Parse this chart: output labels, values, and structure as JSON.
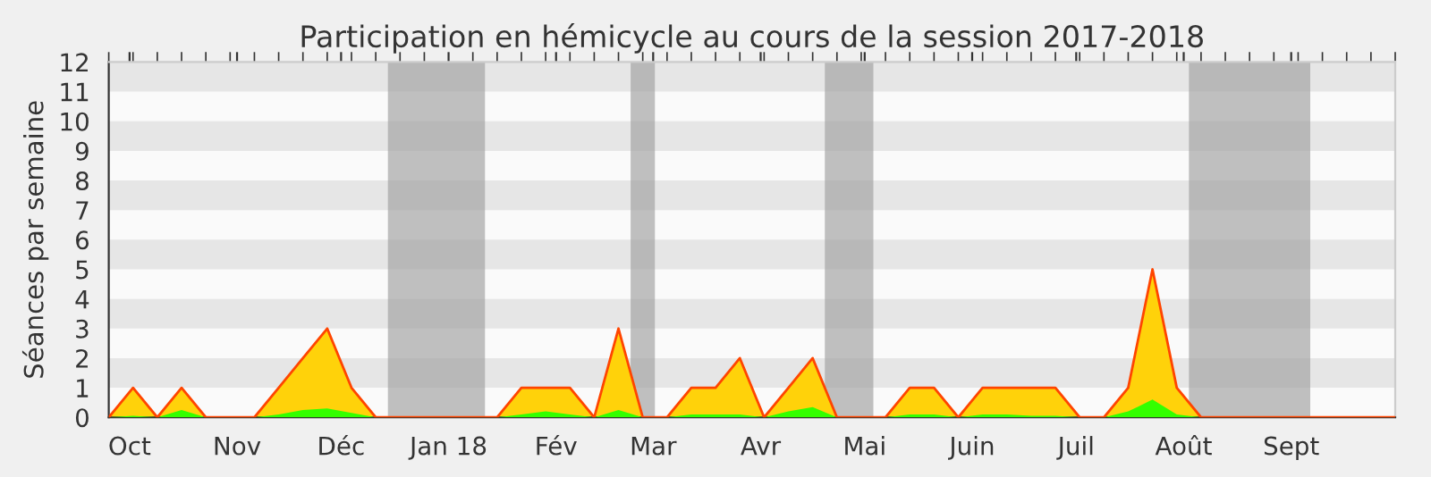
{
  "chart_data": {
    "type": "area",
    "title": "Participation en hémicycle au cours de la session 2017-2018",
    "ylabel": "Séances par semaine",
    "x": [
      "2017-09-25",
      "2017-10-02",
      "2017-10-09",
      "2017-10-16",
      "2017-10-23",
      "2017-10-30",
      "2017-11-06",
      "2017-11-13",
      "2017-11-20",
      "2017-11-27",
      "2017-12-04",
      "2017-12-11",
      "2017-12-18",
      "2017-12-25",
      "2018-01-01",
      "2018-01-08",
      "2018-01-15",
      "2018-01-22",
      "2018-01-29",
      "2018-02-05",
      "2018-02-12",
      "2018-02-19",
      "2018-02-26",
      "2018-03-05",
      "2018-03-12",
      "2018-03-19",
      "2018-03-26",
      "2018-04-02",
      "2018-04-09",
      "2018-04-16",
      "2018-04-23",
      "2018-04-30",
      "2018-05-07",
      "2018-05-14",
      "2018-05-21",
      "2018-05-28",
      "2018-06-04",
      "2018-06-11",
      "2018-06-18",
      "2018-06-25",
      "2018-07-02",
      "2018-07-09",
      "2018-07-16",
      "2018-07-23",
      "2018-07-30",
      "2018-08-06",
      "2018-08-13",
      "2018-08-20",
      "2018-08-27",
      "2018-09-03",
      "2018-09-10",
      "2018-09-17",
      "2018-09-24",
      "2018-10-01"
    ],
    "series": [
      {
        "color": "#ffd20a",
        "values": [
          0,
          1,
          0,
          1,
          0,
          0,
          0,
          1,
          2,
          3,
          1,
          0,
          0,
          0,
          0,
          0,
          0,
          1,
          1,
          1,
          0,
          3,
          0,
          0,
          1,
          1,
          2,
          0,
          1,
          2,
          0,
          0,
          0,
          1,
          1,
          0,
          1,
          1,
          1,
          1,
          0,
          0,
          1,
          5,
          1,
          0,
          0,
          0,
          0,
          0,
          0,
          0,
          0,
          0
        ]
      },
      {
        "color": "#33ff00",
        "values": [
          0,
          0.05,
          0,
          0.25,
          0,
          0,
          0,
          0.1,
          0.25,
          0.3,
          0.15,
          0,
          0,
          0,
          0,
          0,
          0,
          0.1,
          0.2,
          0.1,
          0,
          0.25,
          0,
          0,
          0.1,
          0.1,
          0.1,
          0,
          0.2,
          0.35,
          0,
          0,
          0,
          0.1,
          0.1,
          0,
          0.1,
          0.1,
          0.05,
          0.05,
          0,
          0,
          0.2,
          0.6,
          0.1,
          0,
          0,
          0,
          0,
          0,
          0,
          0,
          0,
          0
        ]
      }
    ],
    "bands": [
      {
        "axis": "y",
        "from": 1,
        "to": 2,
        "color": "#dcdcdc"
      },
      {
        "axis": "y",
        "from": 3,
        "to": 4,
        "color": "#dcdcdc"
      },
      {
        "axis": "y",
        "from": 5,
        "to": 6,
        "color": "#dcdcdc"
      },
      {
        "axis": "y",
        "from": 7,
        "to": 8,
        "color": "#dcdcdc"
      },
      {
        "axis": "y",
        "from": 9,
        "to": 10,
        "color": "#dcdcdc"
      },
      {
        "axis": "y",
        "from": 11,
        "to": 12,
        "color": "#dcdcdc"
      },
      {
        "axis": "x",
        "from": "2017-12-14T12:00",
        "to": "2018-01-11T12:00",
        "color": "#a0a0a0"
      },
      {
        "axis": "x",
        "from": "2018-02-22T12:00",
        "to": "2018-03-01T12:00",
        "color": "#a0a0a0"
      },
      {
        "axis": "x",
        "from": "2018-04-19T12:00",
        "to": "2018-05-03T12:00",
        "color": "#a0a0a0"
      },
      {
        "axis": "x",
        "from": "2018-08-02T12:00",
        "to": "2018-09-06T12:00",
        "color": "#a0a0a0"
      }
    ],
    "xlim": [
      "2017-09-25",
      "2018-10-01"
    ],
    "xticks": [
      {
        "value": "2017-10-01",
        "label": "Oct"
      },
      {
        "value": "2017-11-01",
        "label": "Nov"
      },
      {
        "value": "2017-12-01",
        "label": "Déc"
      },
      {
        "value": "2018-01-01",
        "label": "Jan 18"
      },
      {
        "value": "2018-02-01",
        "label": "Fév"
      },
      {
        "value": "2018-03-01",
        "label": "Mar"
      },
      {
        "value": "2018-04-01",
        "label": "Avr"
      },
      {
        "value": "2018-05-01",
        "label": "Mai"
      },
      {
        "value": "2018-06-01",
        "label": "Juin"
      },
      {
        "value": "2018-07-01",
        "label": "Juil"
      },
      {
        "value": "2018-08-01",
        "label": "Août"
      },
      {
        "value": "2018-09-01",
        "label": "Sept"
      },
      {
        "value": "2017-09-25",
        "label": null
      },
      {
        "value": "2017-10-02",
        "label": null
      },
      {
        "value": "2017-10-09",
        "label": null
      },
      {
        "value": "2017-10-16",
        "label": null
      },
      {
        "value": "2017-10-23",
        "label": null
      },
      {
        "value": "2017-10-30",
        "label": null
      },
      {
        "value": "2017-11-06",
        "label": null
      },
      {
        "value": "2017-11-13",
        "label": null
      },
      {
        "value": "2017-11-20",
        "label": null
      },
      {
        "value": "2017-11-27",
        "label": null
      },
      {
        "value": "2017-12-04",
        "label": null
      },
      {
        "value": "2017-12-11",
        "label": null
      },
      {
        "value": "2017-12-18",
        "label": null
      },
      {
        "value": "2017-12-25",
        "label": null
      },
      {
        "value": "2018-01-08",
        "label": null
      },
      {
        "value": "2018-01-15",
        "label": null
      },
      {
        "value": "2018-01-22",
        "label": null
      },
      {
        "value": "2018-01-29",
        "label": null
      },
      {
        "value": "2018-02-05",
        "label": null
      },
      {
        "value": "2018-02-12",
        "label": null
      },
      {
        "value": "2018-02-19",
        "label": null
      },
      {
        "value": "2018-02-26",
        "label": null
      },
      {
        "value": "2018-03-05",
        "label": null
      },
      {
        "value": "2018-03-12",
        "label": null
      },
      {
        "value": "2018-03-19",
        "label": null
      },
      {
        "value": "2018-03-26",
        "label": null
      },
      {
        "value": "2018-04-02",
        "label": null
      },
      {
        "value": "2018-04-09",
        "label": null
      },
      {
        "value": "2018-04-16",
        "label": null
      },
      {
        "value": "2018-04-23",
        "label": null
      },
      {
        "value": "2018-04-30",
        "label": null
      },
      {
        "value": "2018-05-07",
        "label": null
      },
      {
        "value": "2018-05-14",
        "label": null
      },
      {
        "value": "2018-05-21",
        "label": null
      },
      {
        "value": "2018-05-28",
        "label": null
      },
      {
        "value": "2018-06-04",
        "label": null
      },
      {
        "value": "2018-06-11",
        "label": null
      },
      {
        "value": "2018-06-18",
        "label": null
      },
      {
        "value": "2018-06-25",
        "label": null
      },
      {
        "value": "2018-07-02",
        "label": null
      },
      {
        "value": "2018-07-09",
        "label": null
      },
      {
        "value": "2018-07-16",
        "label": null
      },
      {
        "value": "2018-07-23",
        "label": null
      },
      {
        "value": "2018-07-30",
        "label": null
      },
      {
        "value": "2018-08-06",
        "label": null
      },
      {
        "value": "2018-08-13",
        "label": null
      },
      {
        "value": "2018-08-20",
        "label": null
      },
      {
        "value": "2018-08-27",
        "label": null
      },
      {
        "value": "2018-09-03",
        "label": null
      },
      {
        "value": "2018-09-10",
        "label": null
      },
      {
        "value": "2018-09-17",
        "label": null
      },
      {
        "value": "2018-09-24",
        "label": null
      },
      {
        "value": "2018-10-01",
        "label": null
      }
    ],
    "ylim": [
      0,
      12
    ],
    "yticks": [
      0,
      1,
      2,
      3,
      4,
      5,
      6,
      7,
      8,
      9,
      10,
      11,
      12
    ]
  }
}
